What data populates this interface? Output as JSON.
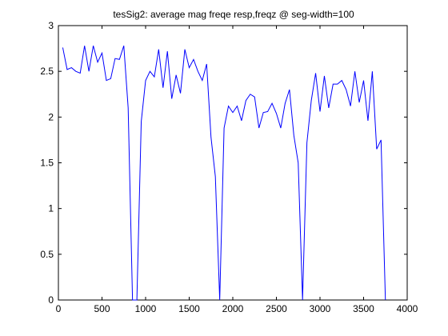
{
  "chart_data": {
    "type": "line",
    "title": "tesSig2: average mag freqe resp,freqz @ seg-width=100",
    "xlabel": "",
    "ylabel": "",
    "xlim": [
      0,
      4000
    ],
    "ylim": [
      0,
      3
    ],
    "xticks": [
      0,
      500,
      1000,
      1500,
      2000,
      2500,
      3000,
      3500,
      4000
    ],
    "yticks": [
      0,
      0.5,
      1,
      1.5,
      2,
      2.5,
      3
    ],
    "xtick_labels": [
      "0",
      "500",
      "1000",
      "1500",
      "2000",
      "2500",
      "3000",
      "3500",
      "4000"
    ],
    "ytick_labels": [
      "0",
      "0.5",
      "1",
      "1.5",
      "2",
      "2.5",
      "3"
    ],
    "grid": false,
    "series": [
      {
        "color": "#0000ff",
        "x": [
          50,
          100,
          150,
          200,
          250,
          300,
          350,
          400,
          450,
          500,
          550,
          600,
          650,
          700,
          750,
          800,
          850,
          900,
          950,
          1000,
          1050,
          1100,
          1150,
          1200,
          1250,
          1300,
          1350,
          1400,
          1450,
          1500,
          1550,
          1600,
          1650,
          1700,
          1750,
          1800,
          1850,
          1900,
          1950,
          2000,
          2050,
          2100,
          2150,
          2200,
          2250,
          2300,
          2350,
          2400,
          2450,
          2500,
          2550,
          2600,
          2650,
          2700,
          2750,
          2800,
          2850,
          2900,
          2950,
          3000,
          3050,
          3100,
          3150,
          3200,
          3250,
          3300,
          3350,
          3400,
          3450,
          3500,
          3550,
          3600,
          3650,
          3700,
          3750
        ],
        "y": [
          2.76,
          2.52,
          2.54,
          2.5,
          2.48,
          2.78,
          2.5,
          2.78,
          2.6,
          2.7,
          2.4,
          2.42,
          2.64,
          2.63,
          2.78,
          2.1,
          0.0,
          0.0,
          1.95,
          2.4,
          2.5,
          2.44,
          2.74,
          2.32,
          2.72,
          2.2,
          2.46,
          2.26,
          2.74,
          2.54,
          2.63,
          2.5,
          2.4,
          2.58,
          1.78,
          1.35,
          0.0,
          1.88,
          2.12,
          2.05,
          2.12,
          1.96,
          2.18,
          2.25,
          2.22,
          1.88,
          2.05,
          2.06,
          2.15,
          2.04,
          1.88,
          2.15,
          2.3,
          1.8,
          1.5,
          0.0,
          1.72,
          2.18,
          2.48,
          2.06,
          2.45,
          2.1,
          2.36,
          2.36,
          2.4,
          2.3,
          2.12,
          2.5,
          2.16,
          2.4,
          1.96,
          2.5,
          1.65,
          1.75,
          0.0
        ]
      }
    ]
  }
}
